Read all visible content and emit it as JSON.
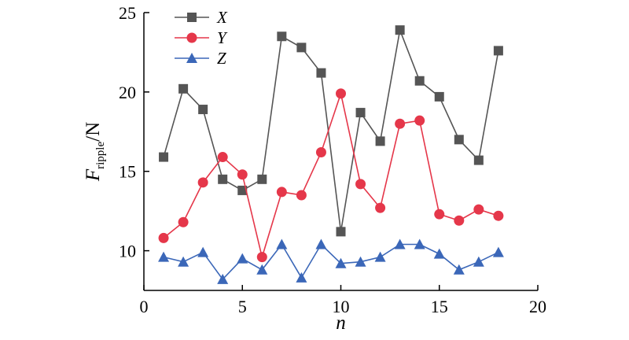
{
  "chart_data": {
    "type": "line",
    "x": [
      1,
      2,
      3,
      4,
      5,
      6,
      7,
      8,
      9,
      10,
      11,
      12,
      13,
      14,
      15,
      16,
      17,
      18
    ],
    "series": [
      {
        "name": "X",
        "color": "#555555",
        "marker": "square",
        "values": [
          15.9,
          20.2,
          18.9,
          14.5,
          13.8,
          14.5,
          23.5,
          22.8,
          21.2,
          11.2,
          18.7,
          16.9,
          23.9,
          20.7,
          19.7,
          17.0,
          15.7,
          22.6
        ]
      },
      {
        "name": "Y",
        "color": "#e5374a",
        "marker": "circle",
        "values": [
          10.8,
          11.8,
          14.3,
          15.9,
          14.8,
          9.6,
          13.7,
          13.5,
          16.2,
          19.9,
          14.2,
          12.7,
          18.0,
          18.2,
          12.3,
          11.9,
          12.6,
          12.2
        ]
      },
      {
        "name": "Z",
        "color": "#3b67b8",
        "marker": "triangle",
        "values": [
          9.6,
          9.3,
          9.9,
          8.2,
          9.5,
          8.8,
          10.4,
          8.3,
          10.4,
          9.2,
          9.3,
          9.6,
          10.4,
          10.4,
          9.8,
          8.8,
          9.3,
          9.9
        ]
      }
    ],
    "xlabel": "n",
    "ylabel": {
      "main": "F",
      "sub": "ripple",
      "unit": "/N"
    },
    "xlim": [
      0,
      20
    ],
    "ylim": [
      7.5,
      25
    ],
    "xticks": [
      0,
      5,
      10,
      15,
      20
    ],
    "yticks": [
      10,
      15,
      20,
      25
    ],
    "grid": false,
    "legend_position": "top-left"
  }
}
